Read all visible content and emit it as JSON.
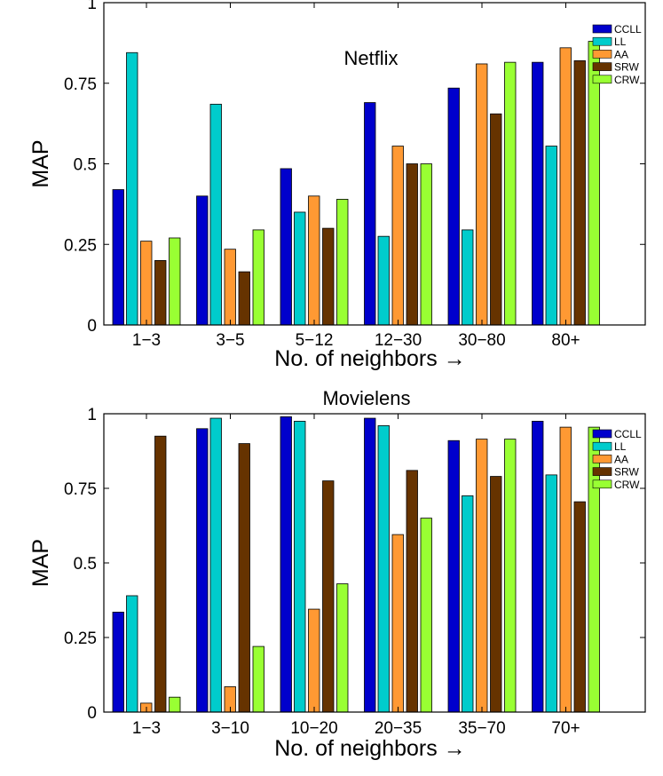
{
  "chart_data": [
    {
      "type": "bar",
      "title": "Netflix",
      "xlabel": "No. of neighbors →",
      "ylabel": "MAP",
      "ylim": [
        0,
        1
      ],
      "yticks": [
        0,
        0.25,
        0.5,
        0.75,
        1
      ],
      "ytick_labels": [
        "0",
        "0.25",
        "0.5",
        "0.75",
        "1"
      ],
      "categories": [
        "1−3",
        "3−5",
        "5−12",
        "12−30",
        "30−80",
        "80+"
      ],
      "legend_position": "top-right",
      "grid": false,
      "series": [
        {
          "name": "CCLL",
          "color": "#0000cc",
          "values": [
            0.42,
            0.4,
            0.485,
            0.69,
            0.735,
            0.815
          ]
        },
        {
          "name": "LL",
          "color": "#00cccc",
          "values": [
            0.845,
            0.685,
            0.35,
            0.275,
            0.295,
            0.555
          ]
        },
        {
          "name": "AA",
          "color": "#ff9933",
          "values": [
            0.26,
            0.235,
            0.4,
            0.555,
            0.81,
            0.86
          ]
        },
        {
          "name": "SRW",
          "color": "#663300",
          "values": [
            0.2,
            0.165,
            0.3,
            0.5,
            0.655,
            0.82
          ]
        },
        {
          "name": "CRW",
          "color": "#99ff33",
          "values": [
            0.27,
            0.295,
            0.39,
            0.5,
            0.815,
            0.88
          ]
        }
      ]
    },
    {
      "type": "bar",
      "title": "Movielens",
      "xlabel": "No. of neighbors →",
      "ylabel": "MAP",
      "ylim": [
        0,
        1
      ],
      "yticks": [
        0,
        0.25,
        0.5,
        0.75,
        1
      ],
      "ytick_labels": [
        "0",
        "0.25",
        "0.5",
        "0.75",
        "1"
      ],
      "categories": [
        "1−3",
        "3−10",
        "10−20",
        "20−35",
        "35−70",
        "70+"
      ],
      "legend_position": "top-right",
      "grid": false,
      "series": [
        {
          "name": "CCLL",
          "color": "#0000cc",
          "values": [
            0.335,
            0.95,
            0.99,
            0.985,
            0.91,
            0.975
          ]
        },
        {
          "name": "LL",
          "color": "#00cccc",
          "values": [
            0.39,
            0.985,
            0.975,
            0.96,
            0.725,
            0.795
          ]
        },
        {
          "name": "AA",
          "color": "#ff9933",
          "values": [
            0.03,
            0.085,
            0.345,
            0.595,
            0.915,
            0.955
          ]
        },
        {
          "name": "SRW",
          "color": "#663300",
          "values": [
            0.925,
            0.9,
            0.775,
            0.81,
            0.79,
            0.705
          ]
        },
        {
          "name": "CRW",
          "color": "#99ff33",
          "values": [
            0.05,
            0.22,
            0.43,
            0.65,
            0.915,
            0.955
          ]
        }
      ]
    }
  ]
}
